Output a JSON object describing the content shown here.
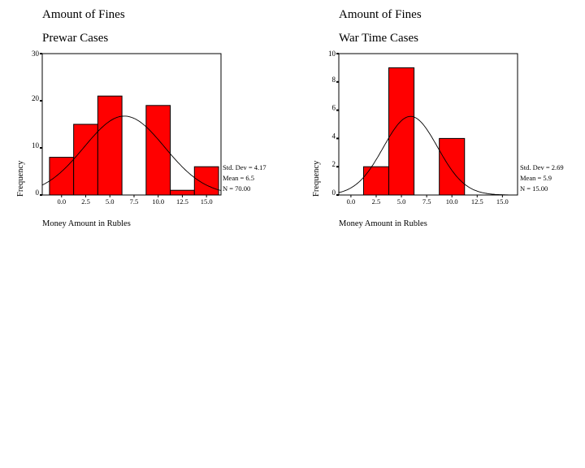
{
  "chart_data": [
    {
      "type": "bar",
      "title": "Amount of Fines",
      "subtitle": "Prewar Cases",
      "xlabel": "Money Amount in Rubles",
      "ylabel": "Frequency",
      "bin_edges": [
        -1.25,
        1.25,
        3.75,
        6.25,
        8.75,
        11.25,
        13.75,
        16.25
      ],
      "values": [
        8,
        15,
        21,
        0,
        19,
        1,
        6
      ],
      "xticks": [
        "0.0",
        "2.5",
        "5.0",
        "7.5",
        "10.0",
        "12.5",
        "15.0"
      ],
      "xtick_values": [
        0,
        2.5,
        5,
        7.5,
        10,
        12.5,
        15
      ],
      "xlim": [
        -2.0,
        16.5
      ],
      "ylim": [
        0,
        30
      ],
      "yticks": [
        0,
        10,
        20,
        30
      ],
      "normal_curve": {
        "mean": 6.5,
        "std": 4.17,
        "n": 70
      },
      "stats": [
        "Std. Dev = 4.17",
        "Mean = 6.5",
        "N = 70.00"
      ],
      "bar_color": "#ff0000",
      "grid": false
    },
    {
      "type": "bar",
      "title": "Amount of Fines",
      "subtitle": "War Time Cases",
      "xlabel": "Money Amount in Rubles",
      "ylabel": "Frequency",
      "bin_edges": [
        1.25,
        3.75,
        6.25,
        8.75,
        11.25
      ],
      "values": [
        2,
        9,
        0,
        4
      ],
      "xticks": [
        "0.0",
        "2.5",
        "5.0",
        "7.5",
        "10.0",
        "12.5",
        "15.0"
      ],
      "xtick_values": [
        0,
        2.5,
        5,
        7.5,
        10,
        12.5,
        15
      ],
      "xlim": [
        -1.2,
        16.5
      ],
      "ylim": [
        0,
        10
      ],
      "yticks": [
        0,
        2,
        4,
        6,
        8,
        10
      ],
      "normal_curve": {
        "mean": 5.9,
        "std": 2.69,
        "n": 15
      },
      "stats": [
        "Std. Dev = 2.69",
        "Mean = 5.9",
        "N = 15.00"
      ],
      "bar_color": "#ff0000",
      "grid": false
    }
  ]
}
